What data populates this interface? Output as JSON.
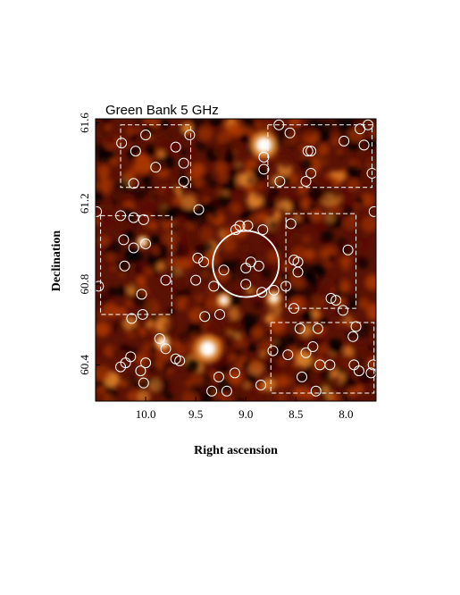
{
  "chart_data": {
    "type": "heatmap",
    "title": "Green Bank 5 GHz",
    "xlabel": "Right ascension",
    "ylabel": "Declination",
    "xlim": [
      10.5,
      7.7
    ],
    "ylim": [
      60.22,
      61.62
    ],
    "x_ticks": [
      {
        "value": 10.0,
        "label": "10.0"
      },
      {
        "value": 9.5,
        "label": "9.5"
      },
      {
        "value": 9.0,
        "label": "9.0"
      },
      {
        "value": 8.5,
        "label": "8.5"
      },
      {
        "value": 8.0,
        "label": "8.0"
      }
    ],
    "y_ticks": [
      {
        "value": 60.4,
        "label": "60.4"
      },
      {
        "value": 60.8,
        "label": "60.8"
      },
      {
        "value": 61.2,
        "label": "61.2"
      },
      {
        "value": 61.6,
        "label": "61.6"
      }
    ],
    "colormap": [
      "#000000",
      "#5a0c00",
      "#a83500",
      "#e88a2c",
      "#ffffff"
    ],
    "bright_sources": [
      {
        "ra": 8.82,
        "dec": 61.49,
        "strength": "high"
      },
      {
        "ra": 9.38,
        "dec": 60.48,
        "strength": "high"
      },
      {
        "ra": 9.83,
        "dec": 60.51,
        "strength": "medium"
      },
      {
        "ra": 9.22,
        "dec": 60.72,
        "strength": "medium"
      },
      {
        "ra": 8.72,
        "dec": 60.73,
        "strength": "medium"
      },
      {
        "ra": 10.03,
        "dec": 61.01,
        "strength": "low"
      }
    ],
    "central_circle": {
      "ra": 9.0,
      "dec": 60.9,
      "radius_deg": 0.33
    },
    "dashed_boxes": [
      {
        "ra_min": 9.55,
        "ra_max": 10.25,
        "dec_min": 61.28,
        "dec_max": 61.59
      },
      {
        "ra_min": 9.74,
        "ra_max": 10.45,
        "dec_min": 60.65,
        "dec_max": 61.14
      },
      {
        "ra_min": 7.74,
        "ra_max": 8.78,
        "dec_min": 61.28,
        "dec_max": 61.59
      },
      {
        "ra_min": 7.9,
        "ra_max": 8.6,
        "dec_min": 60.68,
        "dec_max": 61.15
      },
      {
        "ra_min": 7.72,
        "ra_max": 8.75,
        "dec_min": 60.26,
        "dec_max": 60.61
      }
    ],
    "markers": [
      {
        "ra": 10.24,
        "dec": 61.5
      },
      {
        "ra": 10.0,
        "dec": 61.54
      },
      {
        "ra": 10.1,
        "dec": 61.46
      },
      {
        "ra": 9.7,
        "dec": 61.48
      },
      {
        "ra": 9.56,
        "dec": 61.54
      },
      {
        "ra": 9.62,
        "dec": 61.4
      },
      {
        "ra": 9.9,
        "dec": 61.38
      },
      {
        "ra": 10.12,
        "dec": 61.3
      },
      {
        "ra": 9.62,
        "dec": 61.31
      },
      {
        "ra": 10.49,
        "dec": 61.16
      },
      {
        "ra": 10.25,
        "dec": 61.14
      },
      {
        "ra": 10.12,
        "dec": 61.13
      },
      {
        "ra": 10.02,
        "dec": 61.12
      },
      {
        "ra": 10.22,
        "dec": 61.02
      },
      {
        "ra": 10.12,
        "dec": 60.98
      },
      {
        "ra": 10.0,
        "dec": 61.0
      },
      {
        "ra": 10.21,
        "dec": 60.89
      },
      {
        "ra": 9.8,
        "dec": 60.82
      },
      {
        "ra": 10.47,
        "dec": 60.79
      },
      {
        "ra": 10.04,
        "dec": 60.75
      },
      {
        "ra": 10.03,
        "dec": 60.65
      },
      {
        "ra": 10.14,
        "dec": 60.63
      },
      {
        "ra": 9.47,
        "dec": 61.17
      },
      {
        "ra": 9.1,
        "dec": 61.07
      },
      {
        "ra": 8.98,
        "dec": 61.09
      },
      {
        "ra": 9.06,
        "dec": 61.09
      },
      {
        "ra": 8.83,
        "dec": 61.07
      },
      {
        "ra": 9.48,
        "dec": 60.93
      },
      {
        "ra": 9.42,
        "dec": 60.91
      },
      {
        "ra": 9.22,
        "dec": 60.87
      },
      {
        "ra": 9.0,
        "dec": 60.88
      },
      {
        "ra": 8.95,
        "dec": 60.91
      },
      {
        "ra": 8.87,
        "dec": 60.89
      },
      {
        "ra": 9.5,
        "dec": 60.82
      },
      {
        "ra": 9.32,
        "dec": 60.79
      },
      {
        "ra": 9.0,
        "dec": 60.8
      },
      {
        "ra": 8.84,
        "dec": 60.76
      },
      {
        "ra": 8.72,
        "dec": 60.77
      },
      {
        "ra": 8.6,
        "dec": 60.79
      },
      {
        "ra": 8.48,
        "dec": 60.91
      },
      {
        "ra": 8.48,
        "dec": 60.86
      },
      {
        "ra": 8.52,
        "dec": 60.68
      },
      {
        "ra": 9.41,
        "dec": 60.64
      },
      {
        "ra": 9.26,
        "dec": 60.65
      },
      {
        "ra": 8.67,
        "dec": 61.59
      },
      {
        "ra": 8.56,
        "dec": 61.55
      },
      {
        "ra": 8.82,
        "dec": 61.43
      },
      {
        "ra": 8.82,
        "dec": 61.37
      },
      {
        "ra": 8.38,
        "dec": 61.46
      },
      {
        "ra": 8.35,
        "dec": 61.46
      },
      {
        "ra": 8.02,
        "dec": 61.51
      },
      {
        "ra": 7.86,
        "dec": 61.57
      },
      {
        "ra": 7.78,
        "dec": 61.59
      },
      {
        "ra": 7.82,
        "dec": 61.49
      },
      {
        "ra": 8.66,
        "dec": 61.31
      },
      {
        "ra": 8.4,
        "dec": 61.31
      },
      {
        "ra": 8.35,
        "dec": 61.35
      },
      {
        "ra": 7.74,
        "dec": 61.35
      },
      {
        "ra": 7.72,
        "dec": 61.16
      },
      {
        "ra": 7.98,
        "dec": 60.97
      },
      {
        "ra": 8.55,
        "dec": 61.1
      },
      {
        "ra": 8.52,
        "dec": 60.92
      },
      {
        "ra": 8.15,
        "dec": 60.73
      },
      {
        "ra": 8.1,
        "dec": 60.72
      },
      {
        "ra": 8.03,
        "dec": 60.67
      },
      {
        "ra": 8.46,
        "dec": 60.58
      },
      {
        "ra": 8.28,
        "dec": 60.58
      },
      {
        "ra": 7.9,
        "dec": 60.59
      },
      {
        "ra": 7.93,
        "dec": 60.54
      },
      {
        "ra": 8.73,
        "dec": 60.47
      },
      {
        "ra": 8.58,
        "dec": 60.45
      },
      {
        "ra": 8.4,
        "dec": 60.46
      },
      {
        "ra": 8.33,
        "dec": 60.49
      },
      {
        "ra": 8.26,
        "dec": 60.4
      },
      {
        "ra": 8.16,
        "dec": 60.4
      },
      {
        "ra": 8.44,
        "dec": 60.34
      },
      {
        "ra": 7.92,
        "dec": 60.4
      },
      {
        "ra": 7.87,
        "dec": 60.37
      },
      {
        "ra": 7.75,
        "dec": 60.36
      },
      {
        "ra": 7.73,
        "dec": 60.4
      },
      {
        "ra": 8.3,
        "dec": 60.27
      },
      {
        "ra": 8.85,
        "dec": 60.3
      },
      {
        "ra": 9.11,
        "dec": 60.36
      },
      {
        "ra": 10.2,
        "dec": 60.41
      },
      {
        "ra": 10.15,
        "dec": 60.44
      },
      {
        "ra": 10.25,
        "dec": 60.39
      },
      {
        "ra": 10.05,
        "dec": 60.37
      },
      {
        "ra": 10.0,
        "dec": 60.41
      },
      {
        "ra": 10.02,
        "dec": 60.31
      },
      {
        "ra": 9.7,
        "dec": 60.43
      },
      {
        "ra": 9.66,
        "dec": 60.42
      },
      {
        "ra": 9.8,
        "dec": 60.48
      },
      {
        "ra": 9.86,
        "dec": 60.53
      },
      {
        "ra": 9.34,
        "dec": 60.27
      },
      {
        "ra": 9.27,
        "dec": 60.34
      },
      {
        "ra": 9.19,
        "dec": 60.27
      }
    ]
  }
}
